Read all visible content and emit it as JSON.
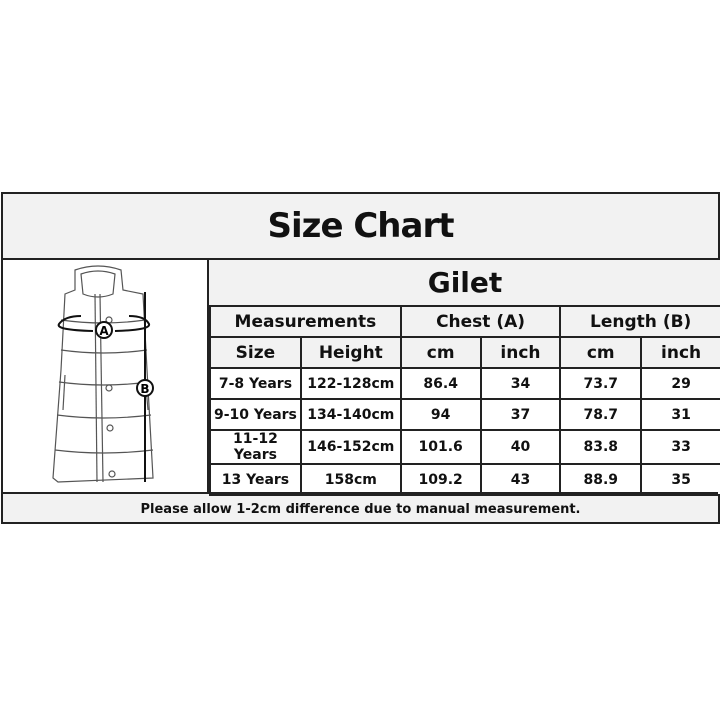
{
  "title": "Size Chart",
  "product": "Gilet",
  "group_headers": [
    "Measurements",
    "Chest (A)",
    "Length (B)"
  ],
  "sub_headers": [
    "Size",
    "Height",
    "cm",
    "inch",
    "cm",
    "inch"
  ],
  "rows": [
    [
      "7-8 Years",
      "122-128cm",
      "86.4",
      "34",
      "73.7",
      "29"
    ],
    [
      "9-10 Years",
      "134-140cm",
      "94",
      "37",
      "78.7",
      "31"
    ],
    [
      "11-12 Years",
      "146-152cm",
      "101.6",
      "40",
      "83.8",
      "33"
    ],
    [
      "13 Years",
      "158cm",
      "109.2",
      "43",
      "88.9",
      "35"
    ]
  ],
  "diagram_labels": {
    "chest": "A",
    "length": "B"
  },
  "footer": "Please allow 1-2cm difference due to manual measurement."
}
